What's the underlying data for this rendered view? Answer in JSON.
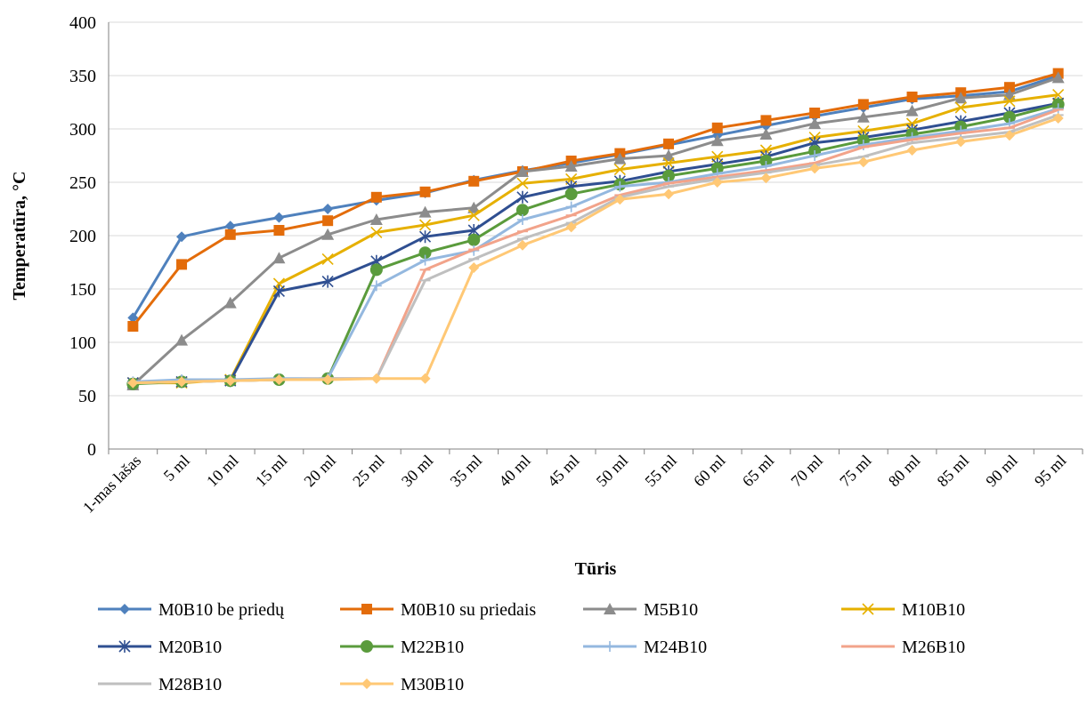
{
  "chart_data": {
    "type": "line",
    "xlabel": "Tūris",
    "ylabel": "Temperatūra, °C",
    "ylim": [
      0,
      400
    ],
    "yticks": [
      0,
      50,
      100,
      150,
      200,
      250,
      300,
      350,
      400
    ],
    "grid": "horizontal",
    "legend_position": "bottom",
    "categories": [
      "1-mas lašas",
      "5 ml",
      "10 ml",
      "15 ml",
      "20 ml",
      "25 ml",
      "30 ml",
      "35 ml",
      "40 ml",
      "45 ml",
      "50 ml",
      "55 ml",
      "60 ml",
      "65 ml",
      "70 ml",
      "75 ml",
      "80 ml",
      "85 ml",
      "90 ml",
      "95 ml"
    ],
    "series": [
      {
        "name": "M0B10 be priedų",
        "color": "#4f81bd",
        "marker": "diamond",
        "values": [
          123,
          199,
          209,
          217,
          225,
          233,
          240,
          252,
          261,
          268,
          276,
          285,
          294,
          303,
          312,
          320,
          328,
          331,
          335,
          350
        ]
      },
      {
        "name": "M0B10 su priedais",
        "color": "#e36c0a",
        "marker": "square",
        "values": [
          115,
          173,
          201,
          205,
          214,
          236,
          241,
          251,
          260,
          270,
          277,
          286,
          301,
          308,
          315,
          323,
          330,
          334,
          339,
          352
        ]
      },
      {
        "name": "M5B10",
        "color": "#8c8c8c",
        "marker": "triangle",
        "values": [
          60,
          102,
          137,
          179,
          201,
          215,
          222,
          226,
          260,
          265,
          272,
          275,
          289,
          295,
          305,
          311,
          317,
          329,
          332,
          348
        ]
      },
      {
        "name": "M10B10",
        "color": "#e6b000",
        "marker": "x",
        "values": [
          62,
          62,
          65,
          155,
          178,
          203,
          210,
          219,
          249,
          253,
          262,
          268,
          274,
          280,
          292,
          298,
          305,
          320,
          326,
          332
        ]
      },
      {
        "name": "M20B10",
        "color": "#2f4f91",
        "marker": "star",
        "values": [
          62,
          63,
          64,
          148,
          157,
          176,
          199,
          205,
          236,
          246,
          251,
          260,
          267,
          274,
          287,
          292,
          299,
          307,
          315,
          324
        ]
      },
      {
        "name": "M22B10",
        "color": "#5a9b3c",
        "marker": "circle",
        "values": [
          61,
          63,
          64,
          65,
          66,
          168,
          184,
          196,
          224,
          239,
          248,
          256,
          263,
          270,
          279,
          289,
          295,
          302,
          311,
          323
        ]
      },
      {
        "name": "M24B10",
        "color": "#94b8df",
        "marker": "plus",
        "values": [
          63,
          65,
          65,
          66,
          66,
          153,
          177,
          186,
          215,
          227,
          246,
          250,
          258,
          265,
          275,
          285,
          292,
          298,
          305,
          319
        ]
      },
      {
        "name": "M26B10",
        "color": "#f2a38a",
        "marker": "dash",
        "values": [
          62,
          63,
          64,
          65,
          66,
          66,
          168,
          187,
          204,
          219,
          238,
          249,
          255,
          261,
          268,
          283,
          290,
          296,
          301,
          318
        ]
      },
      {
        "name": "M28B10",
        "color": "#bfbfbf",
        "marker": "dash",
        "values": [
          62,
          63,
          64,
          65,
          66,
          66,
          158,
          178,
          197,
          212,
          236,
          246,
          253,
          259,
          266,
          274,
          287,
          292,
          297,
          313
        ]
      },
      {
        "name": "M30B10",
        "color": "#ffc875",
        "marker": "diamond",
        "values": [
          62,
          63,
          64,
          65,
          65,
          66,
          66,
          170,
          191,
          208,
          234,
          239,
          250,
          254,
          263,
          269,
          280,
          288,
          294,
          310
        ]
      }
    ]
  }
}
